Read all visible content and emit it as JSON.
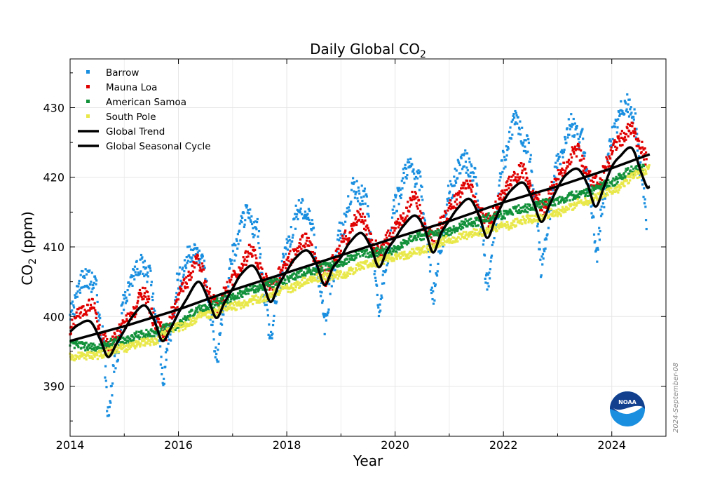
{
  "chart_data": {
    "type": "scatter",
    "title": "Daily Global CO",
    "title_sub": "2",
    "xlabel": "Year",
    "ylabel_main": "CO",
    "ylabel_sub": "2",
    "ylabel_unit": " (ppm)",
    "xlim": [
      2014,
      2025.0
    ],
    "ylim": [
      382.8,
      437.0
    ],
    "x_ticks": [
      2014,
      2016,
      2018,
      2020,
      2022,
      2024
    ],
    "y_ticks": [
      390,
      400,
      410,
      420,
      430
    ],
    "grid": true,
    "legend_position": "top-left",
    "date_stamp": "2024-September-08",
    "logo_text": "NOAA",
    "series": [
      {
        "name": "Barrow",
        "color": "#1a8fe0",
        "marker": "square",
        "points": [
          [
            2014.0,
            400.5
          ],
          [
            2014.25,
            405.6
          ],
          [
            2014.45,
            404.8
          ],
          [
            2014.6,
            397
          ],
          [
            2014.7,
            387
          ],
          [
            2014.85,
            393.5
          ],
          [
            2015.0,
            402.5
          ],
          [
            2015.25,
            407.5
          ],
          [
            2015.45,
            406.5
          ],
          [
            2015.6,
            398.5
          ],
          [
            2015.72,
            391.5
          ],
          [
            2015.85,
            398
          ],
          [
            2016.0,
            405.5
          ],
          [
            2016.25,
            409.5
          ],
          [
            2016.45,
            408
          ],
          [
            2016.6,
            400
          ],
          [
            2016.7,
            394
          ],
          [
            2016.85,
            401.5
          ],
          [
            2017.0,
            409
          ],
          [
            2017.25,
            414.5
          ],
          [
            2017.45,
            412.5
          ],
          [
            2017.6,
            403
          ],
          [
            2017.7,
            397
          ],
          [
            2017.85,
            404.5
          ],
          [
            2018.0,
            410.5
          ],
          [
            2018.25,
            415.5
          ],
          [
            2018.45,
            414
          ],
          [
            2018.6,
            405.5
          ],
          [
            2018.7,
            399
          ],
          [
            2018.85,
            406
          ],
          [
            2019.0,
            412.5
          ],
          [
            2019.25,
            418.5
          ],
          [
            2019.45,
            417
          ],
          [
            2019.6,
            408
          ],
          [
            2019.7,
            401
          ],
          [
            2019.85,
            408.5
          ],
          [
            2020.0,
            416.5
          ],
          [
            2020.25,
            421.5
          ],
          [
            2020.45,
            419.5
          ],
          [
            2020.6,
            411
          ],
          [
            2020.7,
            403
          ],
          [
            2020.85,
            410.5
          ],
          [
            2021.0,
            418
          ],
          [
            2021.25,
            422.5
          ],
          [
            2021.45,
            421
          ],
          [
            2021.6,
            412
          ],
          [
            2021.7,
            404.5
          ],
          [
            2021.85,
            413
          ],
          [
            2022.0,
            422.5
          ],
          [
            2022.2,
            428
          ],
          [
            2022.45,
            424.5
          ],
          [
            2022.6,
            416
          ],
          [
            2022.7,
            407
          ],
          [
            2022.85,
            414.5
          ],
          [
            2023.0,
            422.5
          ],
          [
            2023.25,
            427.5
          ],
          [
            2023.45,
            425.5
          ],
          [
            2023.6,
            417.5
          ],
          [
            2023.72,
            409
          ],
          [
            2023.85,
            417
          ],
          [
            2024.0,
            426
          ],
          [
            2024.25,
            430.5
          ],
          [
            2024.4,
            429
          ],
          [
            2024.55,
            421
          ],
          [
            2024.65,
            413
          ]
        ]
      },
      {
        "name": "Mauna Loa",
        "color": "#e00000",
        "marker": "square",
        "points": [
          [
            2014.0,
            398.5
          ],
          [
            2014.2,
            400.5
          ],
          [
            2014.4,
            401.8
          ],
          [
            2014.6,
            397
          ],
          [
            2014.72,
            395.5
          ],
          [
            2014.9,
            397.8
          ],
          [
            2015.1,
            399.8
          ],
          [
            2015.35,
            403.5
          ],
          [
            2015.6,
            399
          ],
          [
            2015.75,
            397.5
          ],
          [
            2015.9,
            400.5
          ],
          [
            2016.1,
            404.5
          ],
          [
            2016.35,
            408
          ],
          [
            2016.6,
            403
          ],
          [
            2016.75,
            401.5
          ],
          [
            2016.9,
            404
          ],
          [
            2017.1,
            406.5
          ],
          [
            2017.35,
            409.5
          ],
          [
            2017.6,
            405.5
          ],
          [
            2017.75,
            404
          ],
          [
            2017.9,
            406.5
          ],
          [
            2018.1,
            408.5
          ],
          [
            2018.35,
            411
          ],
          [
            2018.6,
            407
          ],
          [
            2018.72,
            405.5
          ],
          [
            2018.9,
            408.5
          ],
          [
            2019.1,
            411.5
          ],
          [
            2019.35,
            414.5
          ],
          [
            2019.6,
            410.5
          ],
          [
            2019.72,
            409
          ],
          [
            2019.9,
            411.5
          ],
          [
            2020.1,
            414
          ],
          [
            2020.35,
            417
          ],
          [
            2020.6,
            412.5
          ],
          [
            2020.72,
            411
          ],
          [
            2020.9,
            414
          ],
          [
            2021.1,
            416.5
          ],
          [
            2021.35,
            419
          ],
          [
            2021.6,
            414.5
          ],
          [
            2021.72,
            413.5
          ],
          [
            2021.9,
            416.5
          ],
          [
            2022.1,
            419
          ],
          [
            2022.35,
            421
          ],
          [
            2022.6,
            417
          ],
          [
            2022.75,
            415.5
          ],
          [
            2022.9,
            418.5
          ],
          [
            2023.1,
            421
          ],
          [
            2023.35,
            424
          ],
          [
            2023.6,
            420
          ],
          [
            2023.75,
            419
          ],
          [
            2023.9,
            422
          ],
          [
            2024.1,
            425
          ],
          [
            2024.35,
            427
          ],
          [
            2024.55,
            424.5
          ],
          [
            2024.65,
            422.5
          ]
        ]
      },
      {
        "name": "American Samoa",
        "color": "#12913a",
        "marker": "square",
        "points": [
          [
            2014.0,
            396
          ],
          [
            2014.5,
            395.5
          ],
          [
            2014.9,
            396.5
          ],
          [
            2015.4,
            397.5
          ],
          [
            2015.9,
            398.5
          ],
          [
            2016.4,
            401
          ],
          [
            2016.9,
            402.5
          ],
          [
            2017.4,
            404
          ],
          [
            2017.9,
            405
          ],
          [
            2018.4,
            406.5
          ],
          [
            2018.9,
            407.5
          ],
          [
            2019.4,
            409
          ],
          [
            2019.9,
            409.5
          ],
          [
            2020.4,
            411.5
          ],
          [
            2020.9,
            412
          ],
          [
            2021.4,
            413.5
          ],
          [
            2021.9,
            414.5
          ],
          [
            2022.4,
            415.5
          ],
          [
            2022.9,
            416.5
          ],
          [
            2023.4,
            417.5
          ],
          [
            2023.9,
            419
          ],
          [
            2024.4,
            421
          ],
          [
            2024.6,
            421.5
          ]
        ]
      },
      {
        "name": "South Pole",
        "color": "#e9e84a",
        "marker": "square",
        "points": [
          [
            2014.0,
            394.2
          ],
          [
            2014.5,
            394.5
          ],
          [
            2015.0,
            395.5
          ],
          [
            2015.5,
            396.5
          ],
          [
            2016.0,
            398.5
          ],
          [
            2016.5,
            400.2
          ],
          [
            2017.0,
            401.5
          ],
          [
            2017.5,
            402.5
          ],
          [
            2018.0,
            404
          ],
          [
            2018.5,
            405.5
          ],
          [
            2019.0,
            406
          ],
          [
            2019.5,
            407.5
          ],
          [
            2020.0,
            408.5
          ],
          [
            2020.5,
            409.5
          ],
          [
            2021.0,
            411
          ],
          [
            2021.5,
            412
          ],
          [
            2022.0,
            413
          ],
          [
            2022.5,
            414
          ],
          [
            2023.0,
            415
          ],
          [
            2023.5,
            416.5
          ],
          [
            2024.0,
            418
          ],
          [
            2024.5,
            420.5
          ],
          [
            2024.7,
            421.2
          ]
        ]
      },
      {
        "name": "Global Trend",
        "color": "#000000",
        "marker": "line",
        "points": [
          [
            2014.0,
            396.5
          ],
          [
            2015.0,
            398.6
          ],
          [
            2016.0,
            401.0
          ],
          [
            2017.0,
            403.8
          ],
          [
            2018.0,
            406.3
          ],
          [
            2019.0,
            408.8
          ],
          [
            2020.0,
            411.3
          ],
          [
            2021.0,
            413.7
          ],
          [
            2022.0,
            416.4
          ],
          [
            2023.0,
            418.7
          ],
          [
            2024.0,
            421.3
          ],
          [
            2024.7,
            423.3
          ]
        ]
      },
      {
        "name": "Global Seasonal Cycle",
        "color": "#000000",
        "marker": "line",
        "points": [
          [
            2014.0,
            397.8
          ],
          [
            2014.15,
            398.8
          ],
          [
            2014.37,
            399.3
          ],
          [
            2014.55,
            396.8
          ],
          [
            2014.7,
            394.2
          ],
          [
            2014.85,
            396
          ],
          [
            2015.0,
            398
          ],
          [
            2015.15,
            400
          ],
          [
            2015.37,
            401.6
          ],
          [
            2015.55,
            399.5
          ],
          [
            2015.7,
            396.5
          ],
          [
            2015.85,
            398.2
          ],
          [
            2016.0,
            400.5
          ],
          [
            2016.15,
            402.5
          ],
          [
            2016.37,
            405
          ],
          [
            2016.55,
            402.5
          ],
          [
            2016.7,
            399.8
          ],
          [
            2016.85,
            402
          ],
          [
            2017.0,
            404
          ],
          [
            2017.15,
            406
          ],
          [
            2017.37,
            407.3
          ],
          [
            2017.55,
            405
          ],
          [
            2017.7,
            402.1
          ],
          [
            2017.85,
            404.5
          ],
          [
            2018.0,
            406.5
          ],
          [
            2018.15,
            408.3
          ],
          [
            2018.37,
            409.5
          ],
          [
            2018.55,
            407.5
          ],
          [
            2018.7,
            404.5
          ],
          [
            2018.85,
            407
          ],
          [
            2019.0,
            408.5
          ],
          [
            2019.15,
            410.5
          ],
          [
            2019.37,
            412
          ],
          [
            2019.55,
            410
          ],
          [
            2019.7,
            407.1
          ],
          [
            2019.85,
            409.5
          ],
          [
            2020.0,
            411.2
          ],
          [
            2020.15,
            413
          ],
          [
            2020.37,
            414.5
          ],
          [
            2020.55,
            412.5
          ],
          [
            2020.7,
            409.2
          ],
          [
            2020.85,
            412
          ],
          [
            2021.0,
            413.8
          ],
          [
            2021.15,
            415.5
          ],
          [
            2021.37,
            416.9
          ],
          [
            2021.55,
            414.5
          ],
          [
            2021.7,
            411.3
          ],
          [
            2021.85,
            414
          ],
          [
            2022.0,
            416.5
          ],
          [
            2022.15,
            418.2
          ],
          [
            2022.37,
            419.2
          ],
          [
            2022.55,
            416.5
          ],
          [
            2022.7,
            413.6
          ],
          [
            2022.85,
            416
          ],
          [
            2023.0,
            418.5
          ],
          [
            2023.15,
            420.3
          ],
          [
            2023.37,
            421.2
          ],
          [
            2023.55,
            419
          ],
          [
            2023.7,
            415.8
          ],
          [
            2023.85,
            418.5
          ],
          [
            2024.0,
            421.5
          ],
          [
            2024.15,
            423
          ],
          [
            2024.37,
            424.2
          ],
          [
            2024.55,
            420.5
          ],
          [
            2024.65,
            418.6
          ],
          [
            2024.7,
            418.7
          ]
        ]
      }
    ]
  }
}
